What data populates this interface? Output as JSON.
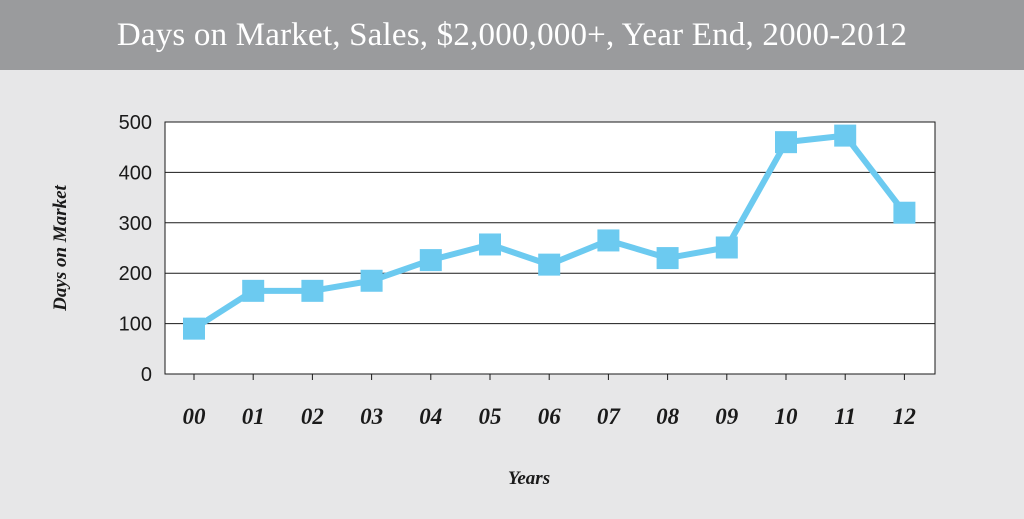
{
  "chart_data": {
    "type": "line",
    "title": "Days on Market, Sales, $2,000,000+, Year End, 2000-2012",
    "xlabel": "Years",
    "ylabel": "Days on Market",
    "categories": [
      "00",
      "01",
      "02",
      "03",
      "04",
      "05",
      "06",
      "07",
      "08",
      "09",
      "10",
      "11",
      "12"
    ],
    "series": [
      {
        "values": [
          90,
          165,
          165,
          185,
          226,
          257,
          217,
          265,
          230,
          251,
          460,
          473,
          320
        ]
      }
    ],
    "ylim": [
      0,
      500
    ],
    "yticks": [
      0,
      100,
      200,
      300,
      400,
      500
    ],
    "grid": true,
    "colors": {
      "line": "#6ccaf0",
      "title_bar": "#9a9b9d",
      "background": "#e7e7e8",
      "plot_background": "#ffffff"
    }
  }
}
